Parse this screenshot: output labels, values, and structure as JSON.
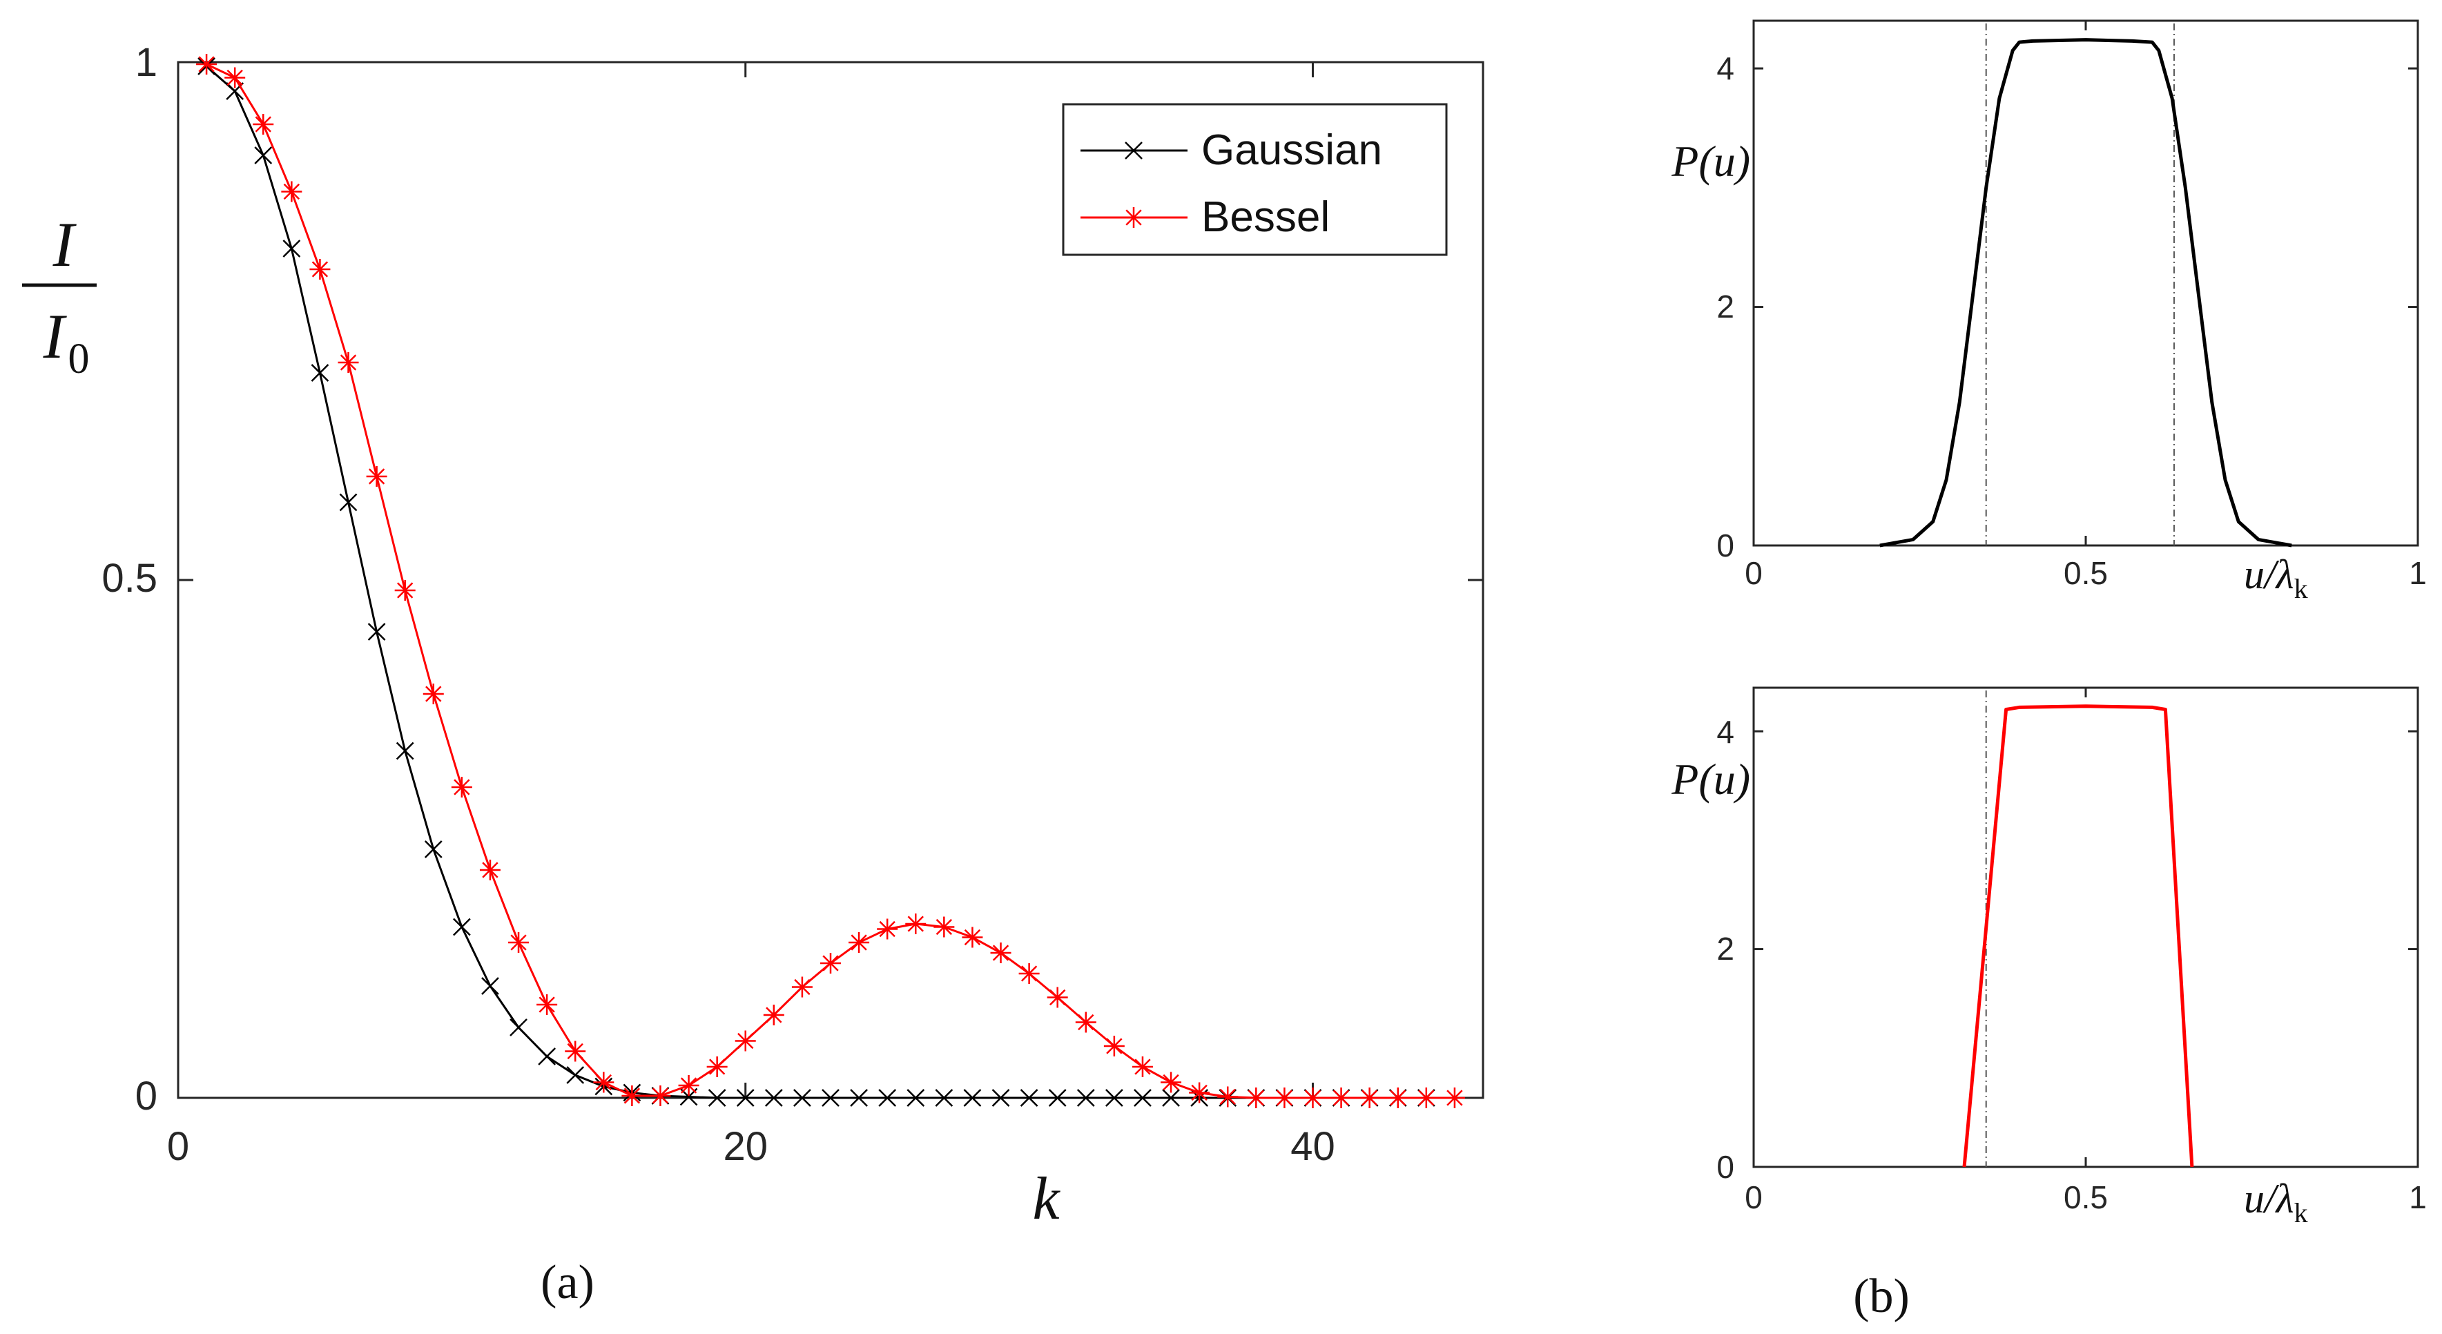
{
  "chart_data": [
    {
      "id": "a",
      "type": "line",
      "caption": "(a)",
      "xlabel": "k",
      "ylabel": {
        "numerator": "I",
        "denominator": "I",
        "denominator_subscript": "0"
      },
      "xlim": [
        0,
        46
      ],
      "ylim": [
        0,
        1
      ],
      "xticks": [
        "0",
        "20",
        "40"
      ],
      "xtick_values": [
        0,
        20,
        40
      ],
      "yticks": [
        "0",
        "0.5",
        "1"
      ],
      "ytick_values": [
        0,
        0.5,
        1
      ],
      "legend": {
        "placement": "top-right",
        "entries": [
          "Gaussian",
          "Bessel"
        ]
      },
      "series": [
        {
          "name": "Gaussian",
          "color": "#000000",
          "marker": "x",
          "x": [
            1,
            2,
            3,
            4,
            5,
            6,
            7,
            8,
            9,
            10,
            11,
            12,
            13,
            14,
            15,
            16,
            17,
            18,
            19,
            20,
            21,
            22,
            23,
            24,
            25,
            26,
            27,
            28,
            29,
            30,
            31,
            32,
            33,
            34,
            35,
            36,
            37,
            38,
            39,
            40,
            41,
            42,
            43,
            44
          ],
          "y": [
            0.996,
            0.972,
            0.91,
            0.82,
            0.7,
            0.575,
            0.45,
            0.335,
            0.24,
            0.165,
            0.108,
            0.068,
            0.04,
            0.022,
            0.011,
            0.005,
            0.002,
            0.001,
            0,
            0,
            0,
            0,
            0,
            0,
            0,
            0,
            0,
            0,
            0,
            0,
            0,
            0,
            0,
            0,
            0,
            0,
            0,
            0,
            0,
            0,
            0,
            0,
            0,
            0
          ]
        },
        {
          "name": "Bessel",
          "color": "#ff0000",
          "marker": "*",
          "x": [
            1,
            2,
            3,
            4,
            5,
            6,
            7,
            8,
            9,
            10,
            11,
            12,
            13,
            14,
            15,
            16,
            17,
            18,
            19,
            20,
            21,
            22,
            23,
            24,
            25,
            26,
            27,
            28,
            29,
            30,
            31,
            32,
            33,
            34,
            35,
            36,
            37,
            38,
            39,
            40,
            41,
            42,
            43,
            44,
            45
          ],
          "y": [
            0.998,
            0.985,
            0.94,
            0.875,
            0.8,
            0.71,
            0.6,
            0.49,
            0.39,
            0.3,
            0.22,
            0.15,
            0.09,
            0.045,
            0.015,
            0.002,
            0.002,
            0.012,
            0.03,
            0.055,
            0.08,
            0.107,
            0.13,
            0.15,
            0.163,
            0.168,
            0.165,
            0.155,
            0.14,
            0.12,
            0.097,
            0.073,
            0.05,
            0.03,
            0.015,
            0.005,
            0.001,
            0,
            0,
            0,
            0,
            0,
            0,
            0,
            0
          ]
        }
      ]
    },
    {
      "id": "b-top",
      "type": "line",
      "ylabel": "P(u)",
      "xlabel": {
        "main": "u/λ",
        "subscript": "k"
      },
      "xlim": [
        0,
        1
      ],
      "ylim": [
        0,
        4.4
      ],
      "xticks": [
        "0",
        "0.5",
        "1"
      ],
      "xtick_values": [
        0,
        0.5,
        1
      ],
      "yticks": [
        "0",
        "2",
        "4"
      ],
      "ytick_values": [
        0,
        2,
        4
      ],
      "reference_lines_x": [
        0.35,
        0.633
      ],
      "series": [
        {
          "name": "P(u)",
          "color": "#000000",
          "x": [
            0.19,
            0.24,
            0.27,
            0.29,
            0.31,
            0.33,
            0.35,
            0.37,
            0.39,
            0.4,
            0.42,
            0.5,
            0.57,
            0.6,
            0.61,
            0.63,
            0.65,
            0.67,
            0.69,
            0.71,
            0.73,
            0.76,
            0.81
          ],
          "y": [
            0,
            0.05,
            0.2,
            0.55,
            1.2,
            2.1,
            3.0,
            3.75,
            4.15,
            4.22,
            4.23,
            4.24,
            4.23,
            4.22,
            4.15,
            3.75,
            3.0,
            2.1,
            1.2,
            0.55,
            0.2,
            0.05,
            0
          ]
        }
      ]
    },
    {
      "id": "b-bottom",
      "type": "line",
      "caption": "(b)",
      "ylabel": "P(u)",
      "xlabel": {
        "main": "u/λ",
        "subscript": "k"
      },
      "xlim": [
        0,
        1
      ],
      "ylim": [
        0,
        4.4
      ],
      "xticks": [
        "0",
        "0.5",
        "1"
      ],
      "xtick_values": [
        0,
        0.5,
        1
      ],
      "yticks": [
        "0",
        "2",
        "4"
      ],
      "ytick_values": [
        0,
        2,
        4
      ],
      "reference_lines_x": [
        0.35
      ],
      "series": [
        {
          "name": "P(u)",
          "color": "#ff0000",
          "x": [
            0.317,
            0.38,
            0.4,
            0.5,
            0.6,
            0.62,
            0.66
          ],
          "y": [
            0,
            4.2,
            4.22,
            4.23,
            4.22,
            4.2,
            0
          ]
        }
      ]
    }
  ]
}
